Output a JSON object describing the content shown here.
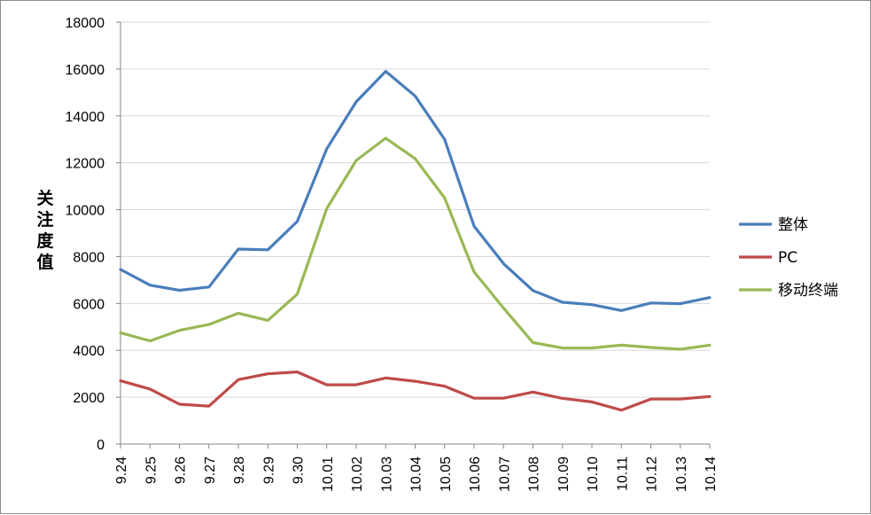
{
  "chart_data": {
    "type": "line",
    "title": "",
    "xlabel": "",
    "ylabel": "关注度值",
    "ylim": [
      0,
      18000
    ],
    "yticks": [
      0,
      2000,
      4000,
      6000,
      8000,
      10000,
      12000,
      14000,
      16000,
      18000
    ],
    "grid": true,
    "legend_position": "right",
    "categories": [
      "9.24",
      "9.25",
      "9.26",
      "9.27",
      "9.28",
      "9.29",
      "9.30",
      "10.01",
      "10.02",
      "10.03",
      "10.04",
      "10.05",
      "10.06",
      "10.07",
      "10.08",
      "10.09",
      "10.10",
      "10.11",
      "10.12",
      "10.13",
      "10.14"
    ],
    "series": [
      {
        "name": "整体",
        "color": "#4a7ebb",
        "values": [
          7450,
          6780,
          6560,
          6700,
          8320,
          8290,
          9500,
          12600,
          14600,
          15900,
          14850,
          13000,
          9300,
          7700,
          6550,
          6050,
          5950,
          5700,
          6020,
          5990,
          6250
        ]
      },
      {
        "name": "PC",
        "color": "#be4b48",
        "values": [
          2700,
          2350,
          1700,
          1620,
          2750,
          3000,
          3080,
          2530,
          2530,
          2820,
          2680,
          2470,
          1960,
          1960,
          2220,
          1950,
          1800,
          1450,
          1920,
          1920,
          2030
        ]
      },
      {
        "name": "移动终端",
        "color": "#98b954",
        "values": [
          4750,
          4400,
          4850,
          5100,
          5580,
          5280,
          6400,
          10050,
          12100,
          13050,
          12180,
          10500,
          7350,
          5800,
          4330,
          4100,
          4100,
          4220,
          4120,
          4050,
          4220
        ]
      }
    ]
  }
}
